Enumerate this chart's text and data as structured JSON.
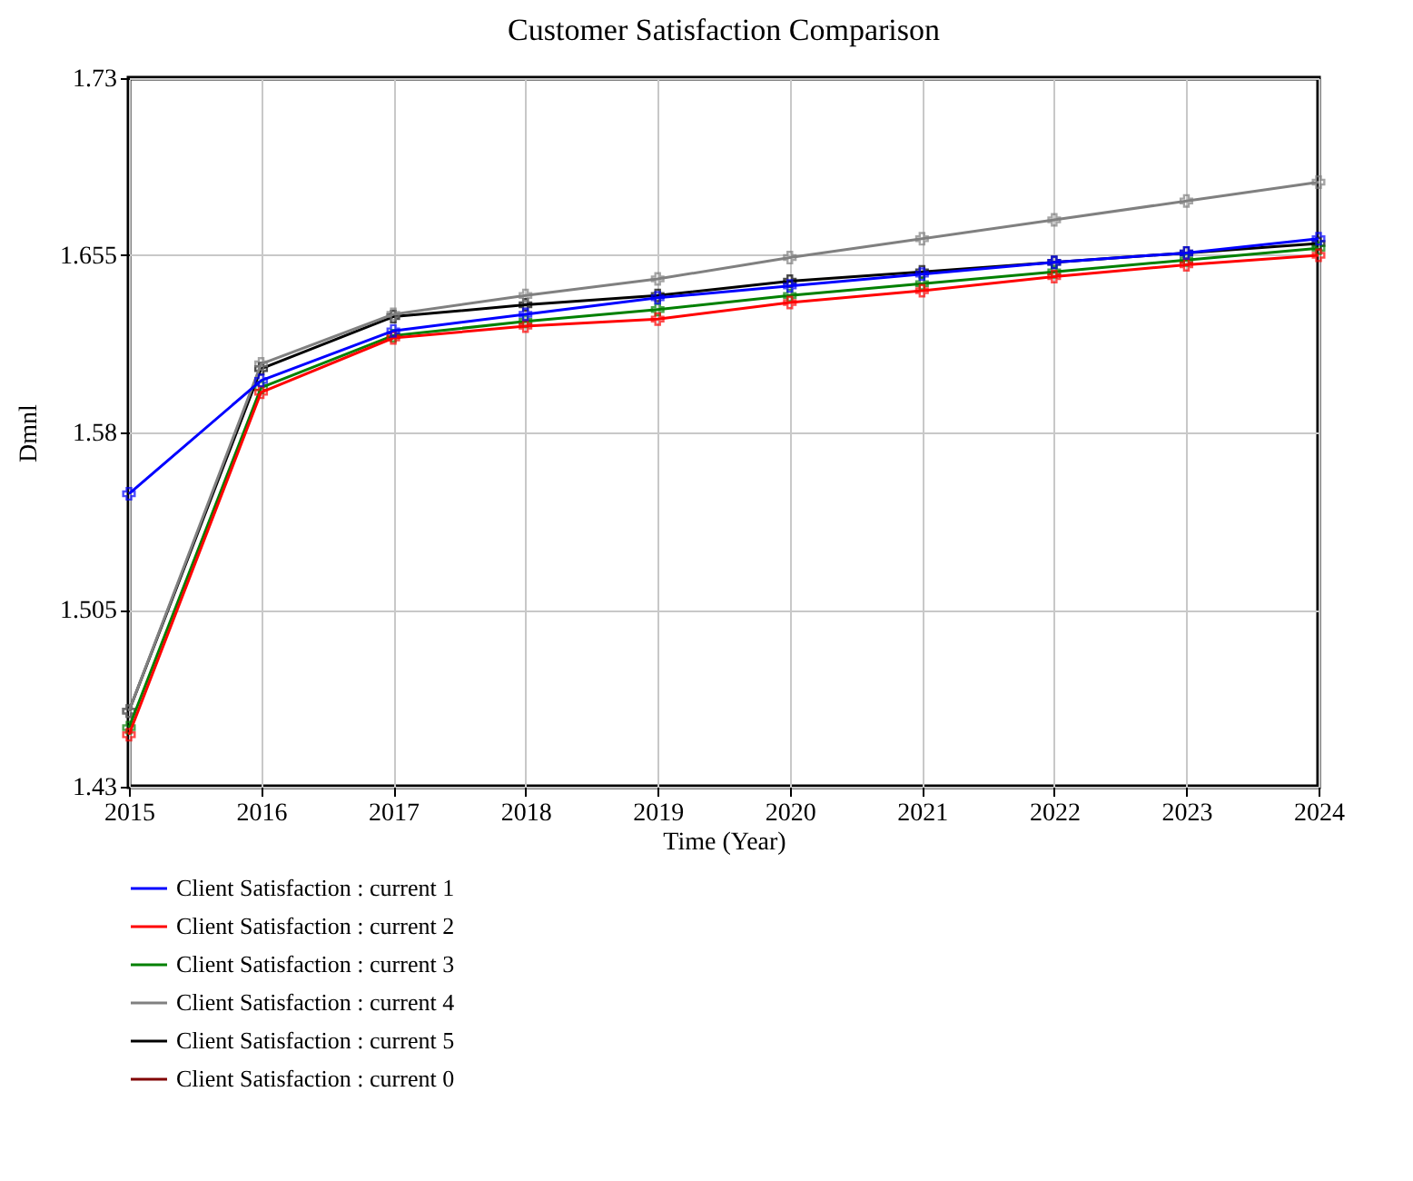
{
  "chart_data": {
    "type": "line",
    "title": "Customer Satisfaction Comparison",
    "xlabel": "Time (Year)",
    "ylabel": "Dmnl",
    "x": [
      2015,
      2016,
      2017,
      2018,
      2019,
      2020,
      2021,
      2022,
      2023,
      2024
    ],
    "xlim": [
      2015,
      2024
    ],
    "xticks": [
      2015,
      2016,
      2017,
      2018,
      2019,
      2020,
      2021,
      2022,
      2023,
      2024
    ],
    "ylim": [
      1.43,
      1.73
    ],
    "yticks": [
      1.43,
      1.505,
      1.58,
      1.655,
      1.73
    ],
    "grid": true,
    "legend": "bottom",
    "marker": "cross",
    "line_style": "solid",
    "series": [
      {
        "name": "Client Satisfaction : current 1",
        "color": "#0000ff",
        "values": [
          1.554,
          1.602,
          1.623,
          1.63,
          1.637,
          1.642,
          1.647,
          1.652,
          1.656,
          1.662
        ]
      },
      {
        "name": "Client Satisfaction : current 2",
        "color": "#ff0000",
        "values": [
          1.452,
          1.597,
          1.62,
          1.625,
          1.628,
          1.635,
          1.64,
          1.646,
          1.651,
          1.655
        ]
      },
      {
        "name": "Client Satisfaction : current 3",
        "color": "#008000",
        "values": [
          1.455,
          1.599,
          1.621,
          1.627,
          1.632,
          1.638,
          1.643,
          1.648,
          1.653,
          1.658
        ]
      },
      {
        "name": "Client Satisfaction : current 4",
        "color": "#808080",
        "values": [
          1.462,
          1.609,
          1.63,
          1.638,
          1.645,
          1.654,
          1.662,
          1.67,
          1.678,
          1.686
        ]
      },
      {
        "name": "Client Satisfaction : current 5",
        "color": "#000000",
        "values": [
          1.462,
          1.607,
          1.629,
          1.634,
          1.638,
          1.644,
          1.648,
          1.652,
          1.656,
          1.66
        ]
      },
      {
        "name": "Client Satisfaction : current 0",
        "color": "#800000",
        "values": [
          null,
          null,
          null,
          null,
          null,
          null,
          null,
          null,
          null,
          null
        ]
      }
    ]
  }
}
